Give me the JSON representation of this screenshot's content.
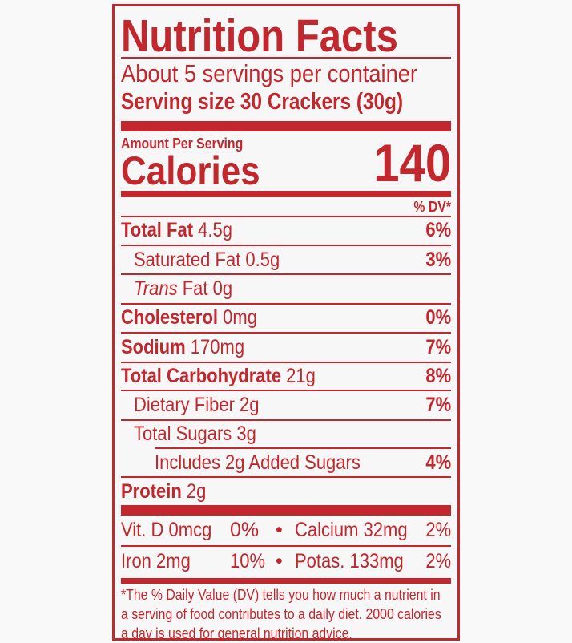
{
  "title": "Nutrition Facts",
  "servings_per_container": "About 5 servings per container",
  "serving_size": "Serving size 30 Crackers (30g)",
  "amount_per_serving": "Amount Per Serving",
  "calories_label": "Calories",
  "calories_value": "140",
  "dv_header": "% DV*",
  "nutrients": [
    {
      "name": "Total Fat",
      "amount": "4.5g",
      "dv": "6%"
    },
    {
      "name": "Saturated Fat",
      "amount": "0.5g",
      "dv": "3%"
    },
    {
      "name_italic": "Trans",
      "name": "Fat",
      "amount": "0g",
      "dv": ""
    },
    {
      "name": "Cholesterol",
      "amount": "0mg",
      "dv": "0%"
    },
    {
      "name": "Sodium",
      "amount": "170mg",
      "dv": "7%"
    },
    {
      "name": "Total Carbohydrate",
      "amount": "21g",
      "dv": "8%"
    },
    {
      "name": "Dietary Fiber",
      "amount": "2g",
      "dv": "7%"
    },
    {
      "name": "Total Sugars",
      "amount": "3g",
      "dv": ""
    },
    {
      "name": "Includes 2g Added Sugars",
      "amount": "",
      "dv": "4%"
    },
    {
      "name": "Protein",
      "amount": "2g",
      "dv": ""
    }
  ],
  "vitamins": [
    {
      "name": "Vit. D 0mcg",
      "dv": "0%",
      "name2": "Calcium 32mg",
      "dv2": "2%"
    },
    {
      "name": "Iron 2mg",
      "dv": "10%",
      "name2": "Potas. 133mg",
      "dv2": "2%"
    }
  ],
  "bullet": "•",
  "footnote": "*The % Daily Value (DV) tells you how much a nutrient in a serving of food contributes to a daily diet. 2000 calories a day is used for general nutrition advice.",
  "colors": {
    "ink": "#c1272d",
    "background": "#f7f7f7"
  }
}
